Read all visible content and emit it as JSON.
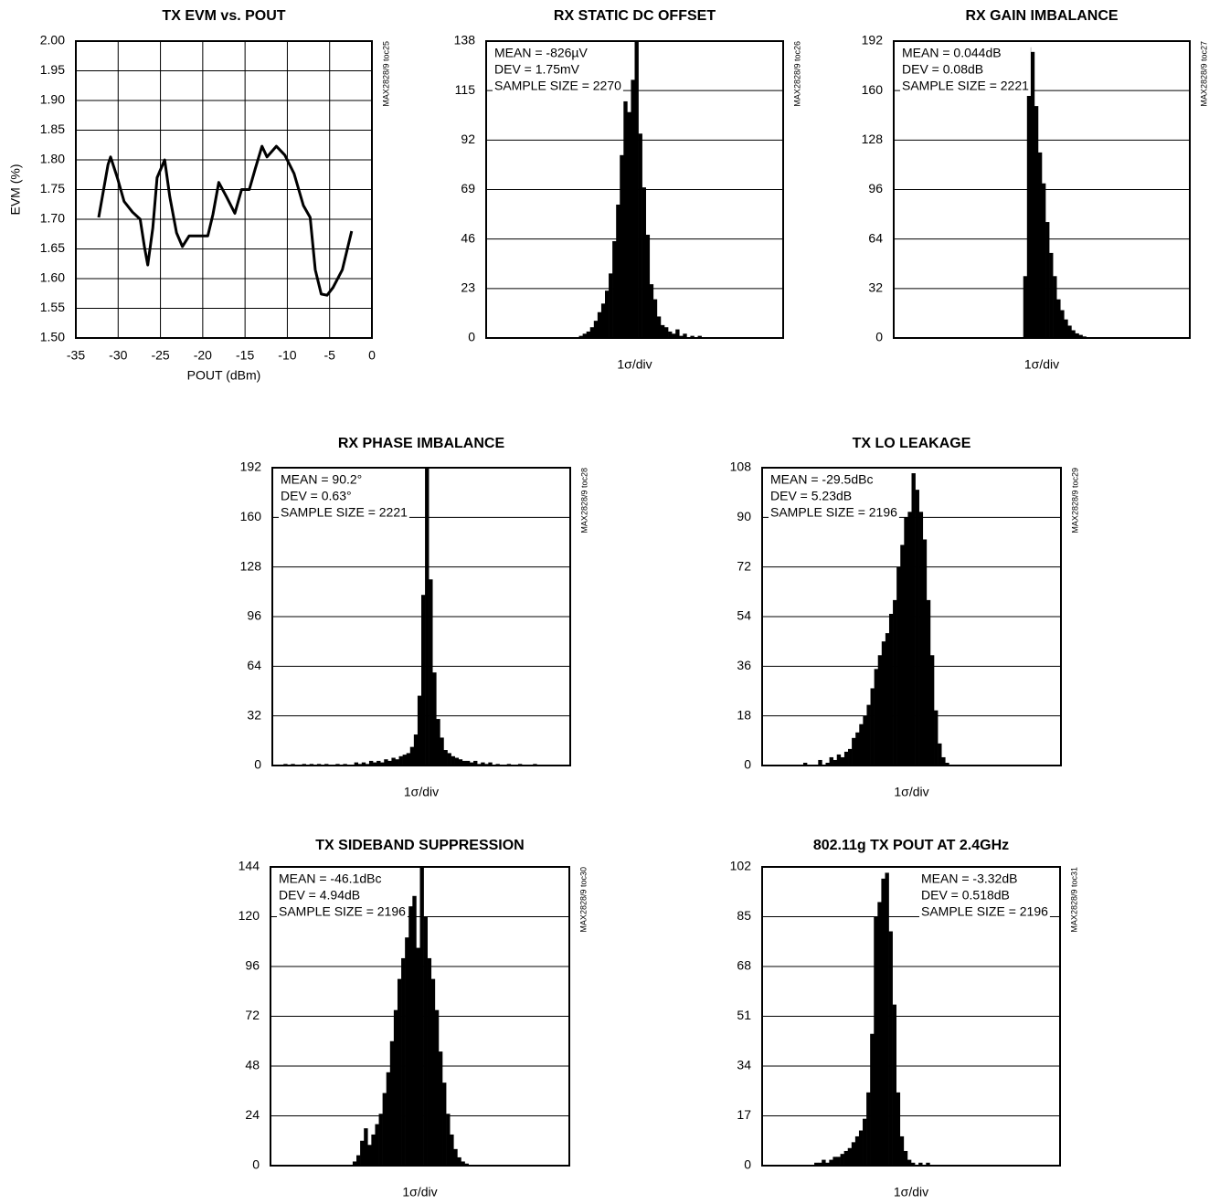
{
  "chart_data": [
    {
      "type": "line",
      "title": "TX EVM vs. POUT",
      "xlabel": "POUT (dBm)",
      "ylabel": "EVM (%)",
      "code": "MAX2828/9 toc25",
      "color": "#000000",
      "grid": true,
      "x": [
        -32.3,
        -31.2,
        -30.9,
        -30.1,
        -29.3,
        -28.3,
        -27.4,
        -26.9,
        -26.5,
        -25.9,
        -25.4,
        -24.5,
        -23.9,
        -23.1,
        -22.4,
        -21.6,
        -20.8,
        -19.4,
        -18.8,
        -18.1,
        -17.2,
        -16.2,
        -15.4,
        -14.5,
        -13.8,
        -13.0,
        -12.4,
        -11.3,
        -10.3,
        -9.2,
        -8.1,
        -7.3,
        -6.7,
        -6.0,
        -5.3,
        -4.6,
        -3.5,
        -2.4
      ],
      "values": [
        1.703,
        1.792,
        1.805,
        1.77,
        1.73,
        1.712,
        1.7,
        1.654,
        1.623,
        1.685,
        1.77,
        1.8,
        1.738,
        1.677,
        1.654,
        1.672,
        1.672,
        1.672,
        1.708,
        1.762,
        1.738,
        1.71,
        1.75,
        1.75,
        1.785,
        1.823,
        1.805,
        1.823,
        1.808,
        1.777,
        1.723,
        1.703,
        1.615,
        1.574,
        1.572,
        1.585,
        1.615,
        1.68
      ],
      "xlim": [
        -35,
        0
      ],
      "xticks": [
        -35,
        -30,
        -25,
        -20,
        -15,
        -10,
        -5,
        0
      ],
      "ylim": [
        1.5,
        2.0
      ],
      "yticks": [
        {
          "value": 1.5,
          "label": "1.50"
        },
        1.55,
        {
          "value": 1.6,
          "label": "1.60"
        },
        1.65,
        {
          "value": 1.7,
          "label": "1.70"
        },
        1.75,
        {
          "value": 1.8,
          "label": "1.80"
        },
        1.85,
        {
          "value": 1.9,
          "label": "1.90"
        },
        1.95,
        {
          "value": 2.0,
          "label": "2.00"
        }
      ]
    },
    {
      "type": "histogram",
      "title": "RX STATIC DC OFFSET",
      "xlabel": "1σ/div",
      "code": "MAX2828/9 toc26",
      "color": "#000000",
      "grid": true,
      "annotations": [
        "MEAN = -826µV",
        "DEV = 1.75mV",
        "SAMPLE SIZE = 2270"
      ],
      "ylim": [
        0,
        138
      ],
      "yticks": [
        0,
        23,
        46,
        69,
        92,
        115,
        138
      ],
      "values": [
        0,
        0,
        0,
        0,
        0,
        0,
        0,
        0,
        0,
        0,
        0,
        0,
        0,
        0,
        0,
        0,
        0,
        0,
        0,
        0,
        0,
        0,
        0,
        0,
        0,
        1,
        2,
        3,
        5,
        8,
        12,
        16,
        22,
        30,
        45,
        62,
        85,
        110,
        105,
        120,
        138,
        95,
        70,
        48,
        25,
        18,
        10,
        6,
        5,
        3,
        2,
        4,
        1,
        2,
        0,
        1,
        0,
        1,
        0,
        0,
        0,
        0,
        0,
        0,
        0,
        0,
        0,
        0,
        0,
        0,
        0,
        0,
        0,
        0,
        0,
        0,
        0,
        0,
        0,
        0
      ]
    },
    {
      "type": "histogram",
      "title": "RX GAIN IMBALANCE",
      "xlabel": "1σ/div",
      "code": "MAX2828/9 toc27",
      "color": "#000000",
      "grid": true,
      "annotations": [
        "MEAN = 0.044dB",
        "DEV = 0.08dB",
        "SAMPLE SIZE = 2221"
      ],
      "ylim": [
        0,
        192
      ],
      "yticks": [
        0,
        32,
        64,
        96,
        128,
        160,
        192
      ],
      "values": [
        0,
        0,
        0,
        0,
        0,
        0,
        0,
        0,
        0,
        0,
        0,
        0,
        0,
        0,
        0,
        0,
        0,
        0,
        0,
        0,
        0,
        0,
        0,
        0,
        0,
        0,
        0,
        0,
        0,
        0,
        0,
        0,
        0,
        0,
        0,
        40,
        188,
        185,
        150,
        120,
        100,
        75,
        55,
        40,
        25,
        18,
        12,
        8,
        5,
        3,
        2,
        1,
        0,
        0,
        0,
        0,
        0,
        0,
        0,
        0,
        0,
        0,
        0,
        0,
        0,
        0,
        0,
        0,
        0,
        0,
        0,
        0,
        0,
        0,
        0,
        0,
        0,
        0,
        0,
        0
      ]
    },
    {
      "type": "histogram",
      "title": "RX PHASE IMBALANCE",
      "xlabel": "1σ/div",
      "code": "MAX2828/9 toc28",
      "color": "#000000",
      "grid": true,
      "annotations": [
        "MEAN = 90.2°",
        "DEV = 0.63°",
        "SAMPLE SIZE = 2221"
      ],
      "ylim": [
        0,
        192
      ],
      "yticks": [
        0,
        32,
        64,
        96,
        128,
        160,
        192
      ],
      "values": [
        0,
        0,
        0,
        1,
        0,
        1,
        0,
        0,
        1,
        0,
        1,
        0,
        1,
        0,
        1,
        0,
        0,
        1,
        0,
        1,
        0,
        0,
        2,
        1,
        2,
        1,
        3,
        2,
        3,
        2,
        4,
        3,
        5,
        4,
        6,
        7,
        8,
        12,
        20,
        45,
        110,
        192,
        120,
        60,
        30,
        18,
        10,
        8,
        6,
        5,
        4,
        3,
        3,
        2,
        3,
        1,
        2,
        1,
        2,
        0,
        1,
        0,
        0,
        1,
        0,
        0,
        1,
        0,
        0,
        0,
        1,
        0,
        0,
        0,
        0,
        0,
        0,
        0,
        0,
        0
      ]
    },
    {
      "type": "histogram",
      "title": "TX LO LEAKAGE",
      "xlabel": "1σ/div",
      "code": "MAX2828/9 toc29",
      "color": "#000000",
      "grid": true,
      "annotations": [
        "MEAN = -29.5dBc",
        "DEV = 5.23dB",
        "SAMPLE SIZE = 2196"
      ],
      "ylim": [
        0,
        108
      ],
      "yticks": [
        0,
        18,
        36,
        54,
        72,
        90,
        108
      ],
      "values": [
        0,
        0,
        0,
        0,
        0,
        0,
        0,
        0,
        0,
        0,
        0,
        1,
        0,
        0,
        0,
        2,
        0,
        1,
        3,
        2,
        4,
        3,
        5,
        6,
        10,
        12,
        15,
        18,
        22,
        28,
        35,
        40,
        45,
        48,
        55,
        60,
        72,
        80,
        90,
        92,
        106,
        100,
        92,
        82,
        60,
        40,
        20,
        8,
        3,
        1,
        0,
        0,
        0,
        0,
        0,
        0,
        0,
        0,
        0,
        0,
        0,
        0,
        0,
        0,
        0,
        0,
        0,
        0,
        0,
        0,
        0,
        0,
        0,
        0,
        0,
        0,
        0,
        0,
        0,
        0
      ]
    },
    {
      "type": "histogram",
      "title": "TX SIDEBAND SUPPRESSION",
      "xlabel": "1σ/div",
      "code": "MAX2828/9 toc30",
      "color": "#000000",
      "grid": true,
      "annotations": [
        "MEAN = -46.1dBc",
        "DEV = 4.94dB",
        "SAMPLE SIZE = 2196"
      ],
      "ylim": [
        0,
        144
      ],
      "yticks": [
        0,
        24,
        48,
        72,
        96,
        120,
        144
      ],
      "values": [
        0,
        0,
        0,
        0,
        0,
        0,
        0,
        0,
        0,
        0,
        0,
        0,
        0,
        0,
        0,
        0,
        0,
        0,
        0,
        0,
        0,
        0,
        2,
        5,
        12,
        18,
        10,
        15,
        20,
        25,
        35,
        45,
        60,
        75,
        90,
        100,
        110,
        125,
        130,
        105,
        144,
        120,
        100,
        90,
        75,
        55,
        40,
        25,
        15,
        8,
        4,
        2,
        1,
        0,
        0,
        0,
        0,
        0,
        0,
        0,
        0,
        0,
        0,
        0,
        0,
        0,
        0,
        0,
        0,
        0,
        0,
        0,
        0,
        0,
        0,
        0,
        0,
        0,
        0,
        0
      ]
    },
    {
      "type": "histogram",
      "title": "802.11g TX POUT AT 2.4GHz",
      "xlabel": "1σ/div",
      "code": "MAX2828/9 toc31",
      "color": "#000000",
      "grid": true,
      "annotations": [
        "MEAN = -3.32dB",
        "DEV = 0.518dB",
        "SAMPLE SIZE = 2196"
      ],
      "ylim": [
        0,
        102
      ],
      "yticks": [
        0,
        17,
        34,
        51,
        68,
        85,
        102
      ],
      "values": [
        0,
        0,
        0,
        0,
        0,
        0,
        0,
        0,
        0,
        0,
        0,
        0,
        0,
        0,
        1,
        1,
        2,
        1,
        2,
        3,
        3,
        4,
        5,
        6,
        8,
        10,
        12,
        16,
        25,
        45,
        85,
        90,
        98,
        100,
        80,
        55,
        25,
        10,
        5,
        2,
        1,
        0,
        1,
        0,
        1,
        0,
        0,
        0,
        0,
        0,
        0,
        0,
        0,
        0,
        0,
        0,
        0,
        0,
        0,
        0,
        0,
        0,
        0,
        0,
        0,
        0,
        0,
        0,
        0,
        0,
        0,
        0,
        0,
        0,
        0,
        0,
        0,
        0,
        0,
        0
      ]
    }
  ]
}
